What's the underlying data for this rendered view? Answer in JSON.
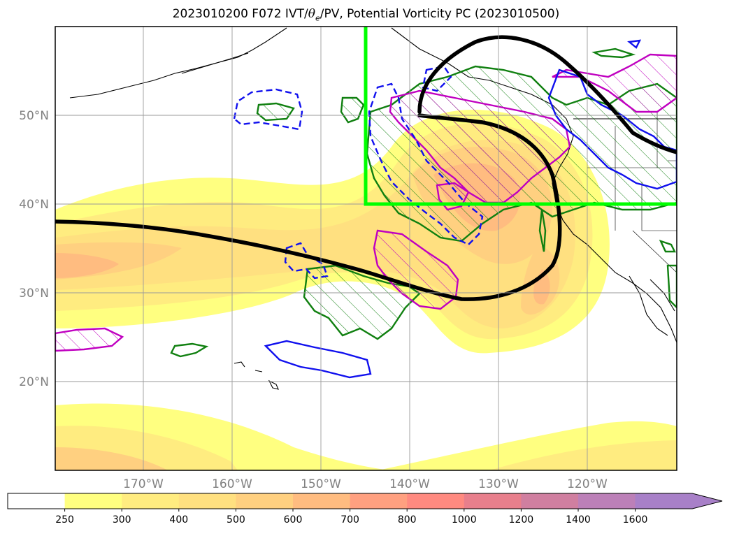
{
  "title": {
    "prefix": "2023010200 F072 IVT/",
    "theta": "θ",
    "theta_sub": "e",
    "suffix": "/PV, Potential Vorticity PC (2023010500)"
  },
  "map": {
    "lon_tick_labels": [
      "170°W",
      "160°W",
      "150°W",
      "140°W",
      "130°W",
      "120°W"
    ],
    "lat_tick_labels": [
      "50°N",
      "40°N",
      "30°N",
      "20°N"
    ],
    "lon_ticks_deg": [
      -170,
      -160,
      -150,
      -140,
      -130,
      -120
    ],
    "lat_ticks_deg": [
      50,
      40,
      30,
      20
    ],
    "extent_lon": [
      -180,
      -110
    ],
    "extent_lat": [
      10,
      60
    ],
    "highlight_box": {
      "lon": [
        -145,
        -110
      ],
      "lat": [
        40,
        60
      ],
      "color": "#00ff00"
    },
    "contour_colors": {
      "ivt_jet_axis": "#000000",
      "positive_pv": "#c000c0",
      "negative_pv_dashed": "#1010ee",
      "anomaly_green": "#108010"
    }
  },
  "colorbar": {
    "tick_labels": [
      "250",
      "300",
      "400",
      "500",
      "600",
      "700",
      "800",
      "1000",
      "1200",
      "1400",
      "1600"
    ],
    "colors": [
      "#ffffff",
      "#ffff80",
      "#ffec80",
      "#ffe080",
      "#ffd080",
      "#ffbc80",
      "#ffa080",
      "#ff8a80",
      "#e87f8c",
      "#d07fa0",
      "#bc80b8",
      "#a880c8"
    ],
    "extend": "max"
  }
}
